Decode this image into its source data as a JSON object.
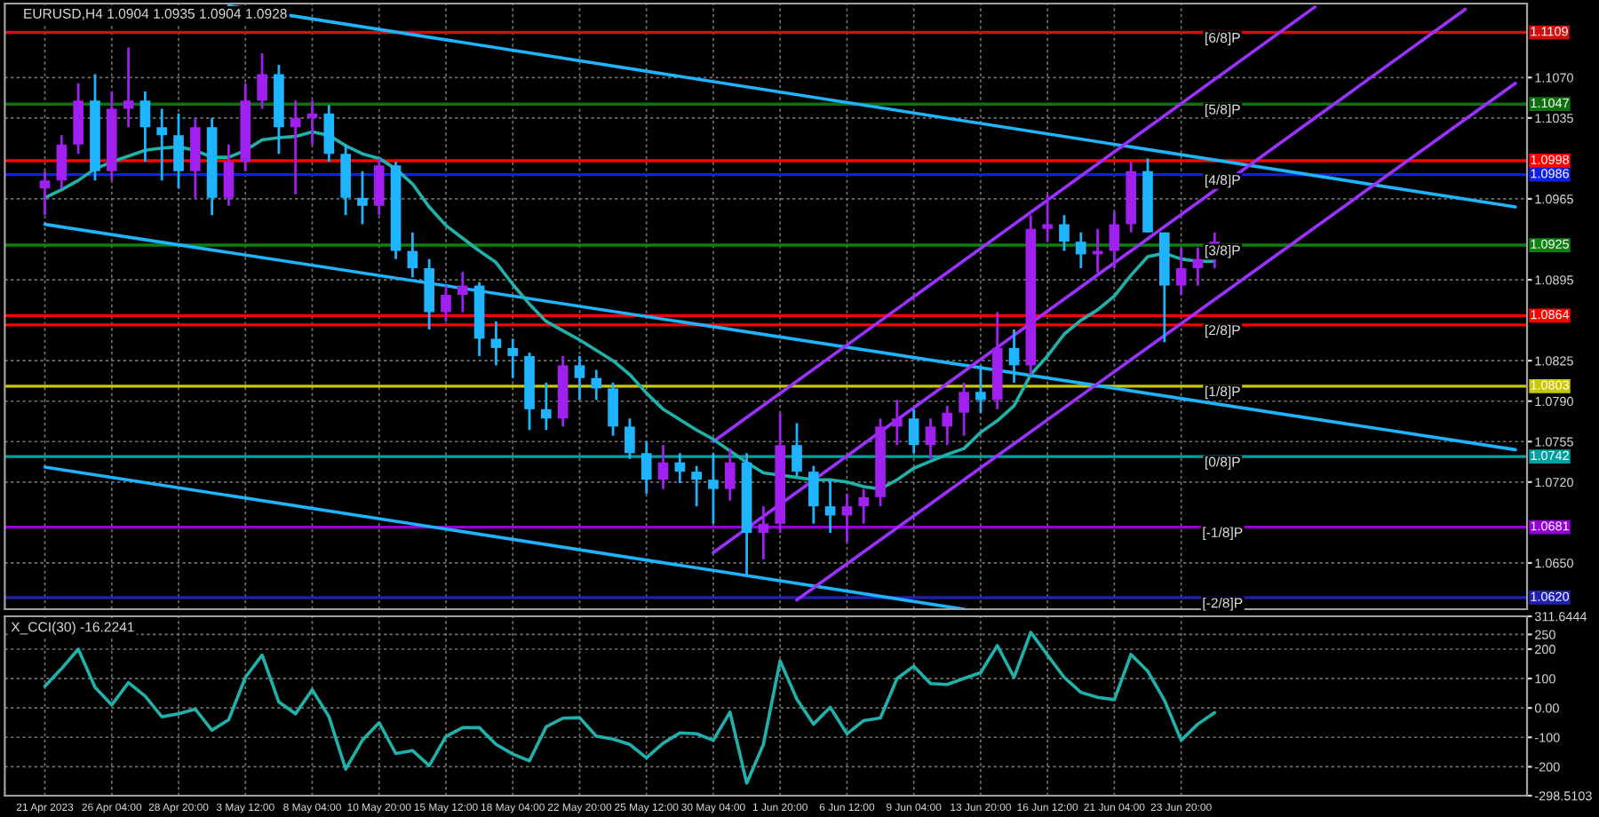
{
  "chart_data": [
    {
      "type": "candlestick",
      "title": "EURUSD,H4 1.0904 1.0935 1.0904 1.0928",
      "ylim": [
        1.061,
        1.1134
      ],
      "categories": [
        null,
        null,
        null,
        null,
        null,
        null,
        null,
        null,
        null,
        null,
        null,
        null,
        null,
        null,
        null,
        null,
        null,
        null,
        null,
        null,
        null,
        null,
        null,
        null,
        null,
        null,
        null,
        null,
        null,
        null,
        null,
        null,
        null,
        null,
        null,
        null,
        null,
        null,
        null,
        null,
        null,
        null,
        null,
        null,
        null,
        null,
        null,
        null,
        null,
        null,
        null,
        null,
        null,
        null,
        null,
        null,
        null,
        null,
        null,
        null,
        null,
        null,
        null,
        null,
        null,
        null,
        null,
        null,
        null,
        null,
        null,
        null,
        null,
        null,
        null,
        null,
        null,
        null,
        null,
        null,
        null,
        null,
        null,
        null,
        null,
        null,
        null,
        null,
        null
      ],
      "yticks": [
        {
          "value": 1.107,
          "label": "1.1070"
        },
        1.1035,
        1.0965,
        1.0895,
        1.0825,
        {
          "value": 1.079,
          "label": "1.0790"
        },
        1.0755,
        {
          "value": 1.072,
          "label": "1.0720"
        },
        {
          "value": 1.065,
          "label": "1.0650"
        }
      ],
      "tick_labels": "y",
      "grid": true,
      "ref_lines": [
        {
          "axis": "y",
          "value": 1.1109,
          "label": "1.1109",
          "color": "#d01010"
        },
        {
          "axis": "y",
          "value": 1.1047,
          "label": "1.1047",
          "color": "#107010"
        },
        {
          "axis": "y",
          "value": 1.0998,
          "label": "1.0998",
          "color": "#ff0000"
        },
        {
          "axis": "y",
          "value": 1.0986,
          "label": "1.0986",
          "color": "#1020e0"
        },
        {
          "axis": "y",
          "value": 1.0925,
          "label": "1.0925",
          "color": "#108010"
        },
        {
          "axis": "y",
          "value": 1.0864,
          "label": "1.0864",
          "color": "#ff0000"
        },
        {
          "axis": "y",
          "value": 1.0856,
          "label": null,
          "color": "#ff0000"
        },
        {
          "axis": "y",
          "value": 1.0803,
          "label": "1.0803",
          "color": "#c8c800"
        },
        {
          "axis": "y",
          "value": 1.0742,
          "label": "1.0742",
          "color": "#00a0a0"
        },
        {
          "axis": "y",
          "value": 1.0681,
          "label": "1.0681",
          "color": "#9400d3"
        },
        {
          "axis": "y",
          "value": 1.062,
          "label": "1.0620",
          "color": "#2020b0"
        }
      ],
      "annotations": [
        {
          "text": "[6/8]P",
          "y": 1.1109
        },
        {
          "text": "[5/8]P",
          "y": 1.1047
        },
        {
          "text": "[4/8]P",
          "y": 1.0986
        },
        {
          "text": "[3/8]P",
          "y": 1.0925
        },
        {
          "text": "[2/8]P",
          "y": 1.0856
        },
        {
          "text": "[1/8]P",
          "y": 1.0803
        },
        {
          "text": "[0/8]P",
          "y": 1.0742
        },
        {
          "text": "[-1/8]P",
          "y": 1.0681
        },
        {
          "text": "[-2/8]P",
          "y": 1.062
        }
      ],
      "series": [
        {
          "type": "line",
          "color": "#1eb4ff",
          "values": [
            null,
            null,
            null,
            null,
            null,
            null,
            null,
            null,
            null,
            null,
            null,
            1.1132,
            null,
            null,
            null,
            null,
            null,
            null,
            null,
            null,
            null,
            null,
            null,
            null,
            null,
            null,
            null,
            null,
            null,
            null,
            null,
            null,
            null,
            null,
            null,
            null,
            null,
            null,
            null,
            null,
            null,
            null,
            null,
            null,
            null,
            null,
            null,
            null,
            null,
            null,
            null,
            null,
            null,
            null,
            null,
            null,
            null,
            null,
            null,
            null,
            null,
            null,
            null,
            null,
            null,
            null,
            null,
            null,
            null,
            null,
            null,
            null,
            null,
            null,
            null,
            null,
            null,
            null,
            null,
            null,
            null,
            null,
            null,
            null,
            null,
            null,
            null,
            null,
            1.0958
          ]
        },
        {
          "type": "line",
          "color": "#1eb4ff",
          "values": [
            1.0943,
            null,
            null,
            null,
            null,
            null,
            null,
            null,
            null,
            null,
            null,
            null,
            null,
            null,
            null,
            null,
            null,
            null,
            null,
            null,
            null,
            null,
            null,
            null,
            null,
            null,
            null,
            null,
            null,
            null,
            null,
            null,
            null,
            null,
            null,
            null,
            null,
            null,
            null,
            null,
            null,
            null,
            null,
            null,
            null,
            null,
            null,
            null,
            null,
            null,
            null,
            null,
            null,
            null,
            null,
            null,
            null,
            null,
            null,
            null,
            null,
            null,
            null,
            null,
            null,
            null,
            null,
            null,
            null,
            null,
            null,
            null,
            null,
            null,
            null,
            null,
            null,
            null,
            null,
            null,
            null,
            null,
            null,
            null,
            null,
            null,
            null,
            null,
            1.0748
          ]
        },
        {
          "type": "line",
          "color": "#1eb4ff",
          "values": [
            1.0733,
            null,
            null,
            null,
            null,
            null,
            null,
            null,
            null,
            null,
            null,
            null,
            null,
            null,
            null,
            null,
            null,
            null,
            null,
            null,
            null,
            null,
            null,
            null,
            null,
            null,
            null,
            null,
            null,
            null,
            null,
            null,
            null,
            null,
            null,
            null,
            null,
            null,
            null,
            null,
            null,
            null,
            null,
            null,
            null,
            null,
            null,
            null,
            null,
            null,
            null,
            null,
            null,
            null,
            null,
            1.061,
            null,
            null,
            null,
            null,
            null,
            null,
            null,
            null,
            null,
            null,
            null,
            null,
            null,
            null,
            null,
            null,
            null,
            null,
            null,
            null,
            null,
            null,
            null,
            null,
            null,
            null,
            null,
            null,
            null,
            null,
            null,
            null,
            null
          ]
        },
        {
          "type": "line",
          "color": "#9b30ff",
          "values": [
            null,
            null,
            null,
            null,
            null,
            null,
            null,
            null,
            null,
            null,
            null,
            null,
            null,
            null,
            null,
            null,
            null,
            null,
            null,
            null,
            null,
            null,
            null,
            null,
            null,
            null,
            null,
            null,
            null,
            null,
            null,
            null,
            null,
            null,
            null,
            null,
            null,
            null,
            null,
            null,
            1.0755,
            null,
            null,
            null,
            null,
            null,
            null,
            null,
            null,
            null,
            null,
            null,
            null,
            null,
            null,
            null,
            null,
            null,
            null,
            null,
            null,
            null,
            null,
            null,
            null,
            null,
            null,
            null,
            null,
            null,
            null,
            null,
            null,
            null,
            null,
            null,
            1.1131,
            null,
            null,
            null,
            null,
            null,
            null,
            null,
            null,
            null,
            null,
            null,
            null
          ]
        },
        {
          "type": "line",
          "color": "#9b30ff",
          "values": [
            null,
            null,
            null,
            null,
            null,
            null,
            null,
            null,
            null,
            null,
            null,
            null,
            null,
            null,
            null,
            null,
            null,
            null,
            null,
            null,
            null,
            null,
            null,
            null,
            null,
            null,
            null,
            null,
            null,
            null,
            null,
            null,
            null,
            null,
            null,
            null,
            null,
            null,
            null,
            null,
            1.0659,
            null,
            null,
            null,
            null,
            null,
            null,
            null,
            null,
            null,
            null,
            null,
            null,
            null,
            null,
            null,
            null,
            null,
            null,
            null,
            null,
            null,
            null,
            null,
            null,
            null,
            null,
            null,
            null,
            null,
            null,
            null,
            null,
            null,
            null,
            null,
            null,
            null,
            null,
            null,
            null,
            null,
            null,
            null,
            null,
            1.1129,
            null,
            null,
            null
          ]
        },
        {
          "type": "line",
          "color": "#9b30ff",
          "values": [
            null,
            null,
            null,
            null,
            null,
            null,
            null,
            null,
            null,
            null,
            null,
            null,
            null,
            null,
            null,
            null,
            null,
            null,
            null,
            null,
            null,
            null,
            null,
            null,
            null,
            null,
            null,
            null,
            null,
            null,
            null,
            null,
            null,
            null,
            null,
            null,
            null,
            null,
            null,
            null,
            null,
            null,
            null,
            null,
            null,
            1.0618,
            null,
            null,
            null,
            null,
            null,
            null,
            null,
            null,
            null,
            null,
            null,
            null,
            null,
            null,
            null,
            null,
            null,
            null,
            null,
            null,
            null,
            null,
            null,
            null,
            null,
            null,
            null,
            null,
            null,
            null,
            null,
            null,
            null,
            null,
            null,
            null,
            null,
            null,
            null,
            null,
            null,
            null,
            1.1065
          ]
        },
        {
          "type": "line",
          "color": "#20b2aa",
          "values": [
            1.0966,
            1.0973,
            1.0981,
            1.0991,
            1.0997,
            1.1002,
            1.1007,
            1.1009,
            1.101,
            1.1007,
            1.1001,
            1.1001,
            1.1007,
            1.1016,
            1.1018,
            1.1019,
            1.1023,
            1.102,
            1.1011,
            1.1004,
            1.1,
            1.0991,
            1.0978,
            1.0958,
            1.0942,
            1.0931,
            1.092,
            1.091,
            1.0891,
            1.0874,
            1.0859,
            1.0851,
            1.0843,
            1.0834,
            1.0825,
            1.0813,
            1.0797,
            1.0783,
            1.0774,
            1.0765,
            1.0757,
            1.0747,
            1.0737,
            1.0728,
            1.0726,
            1.0724,
            1.0722,
            1.0722,
            1.072,
            1.0716,
            1.0714,
            1.0722,
            1.0732,
            1.0738,
            1.0744,
            1.0749,
            1.0763,
            1.0773,
            1.0786,
            1.0813,
            1.0829,
            1.0848,
            1.086,
            1.0869,
            1.0881,
            1.0899,
            1.0915,
            1.0918,
            1.0913,
            1.0911,
            1.0911,
            null,
            null,
            null,
            null,
            null,
            null,
            null,
            null,
            null,
            null,
            null,
            null,
            null,
            null,
            null,
            null,
            null,
            null
          ]
        },
        {
          "type": "candlestick",
          "ohlc": [
            [
              1.0974,
              1.0989,
              1.0951,
              1.0981
            ],
            [
              1.0981,
              1.102,
              1.0974,
              1.1012
            ],
            [
              1.1012,
              1.1065,
              1.1004,
              1.105
            ],
            [
              1.105,
              1.1073,
              1.0981,
              1.0989
            ],
            [
              1.0989,
              1.1058,
              1.0981,
              1.1043
            ],
            [
              1.1043,
              1.1096,
              1.1027,
              1.105
            ],
            [
              1.105,
              1.1058,
              1.0997,
              1.1027
            ],
            [
              1.1027,
              1.1043,
              1.0981,
              1.102
            ],
            [
              1.102,
              1.1039,
              1.0974,
              1.0989
            ],
            [
              1.0989,
              1.1035,
              1.0966,
              1.1027
            ],
            [
              1.1027,
              1.1035,
              1.0951,
              1.0966
            ],
            [
              1.0966,
              1.1012,
              1.0959,
              1.0997
            ],
            [
              1.0997,
              1.1065,
              1.0989,
              1.105
            ],
            [
              1.105,
              1.1091,
              1.1043,
              1.1073
            ],
            [
              1.1073,
              1.1081,
              1.1004,
              1.1027
            ],
            [
              1.1027,
              1.105,
              1.0969,
              1.1035
            ],
            [
              1.1035,
              1.105,
              1.1012,
              1.1039
            ],
            [
              1.1039,
              1.1046,
              1.0997,
              1.1004
            ],
            [
              1.1004,
              1.1012,
              1.0951,
              1.0966
            ],
            [
              1.0966,
              1.0989,
              1.0943,
              1.0959
            ],
            [
              1.0959,
              1.1,
              1.0951,
              1.0994
            ],
            [
              1.0994,
              1.0997,
              1.0913,
              1.092
            ],
            [
              1.092,
              1.0936,
              1.0897,
              1.0905
            ],
            [
              1.0905,
              1.0913,
              1.0852,
              1.0867
            ],
            [
              1.0867,
              1.089,
              1.0859,
              1.0882
            ],
            [
              1.0882,
              1.0902,
              1.0867,
              1.089
            ],
            [
              1.089,
              1.0893,
              1.0829,
              1.0844
            ],
            [
              1.0844,
              1.0859,
              1.0821,
              1.0836
            ],
            [
              1.0836,
              1.0844,
              1.081,
              1.0829
            ],
            [
              1.0829,
              1.0832,
              1.0765,
              1.0783
            ],
            [
              1.0783,
              1.0806,
              1.0765,
              1.0775
            ],
            [
              1.0775,
              1.0829,
              1.0768,
              1.0821
            ],
            [
              1.0821,
              1.0829,
              1.0791,
              1.081
            ],
            [
              1.081,
              1.0817,
              1.0791,
              1.0801
            ],
            [
              1.0801,
              1.0806,
              1.076,
              1.0768
            ],
            [
              1.0768,
              1.0775,
              1.074,
              1.0745
            ],
            [
              1.0745,
              1.0755,
              1.071,
              1.0722
            ],
            [
              1.0722,
              1.0752,
              1.0714,
              1.0737
            ],
            [
              1.0737,
              1.0745,
              1.0719,
              1.0729
            ],
            [
              1.0729,
              1.0734,
              1.0699,
              1.0722
            ],
            [
              1.0722,
              1.0745,
              1.0684,
              1.0714
            ],
            [
              1.0714,
              1.0749,
              1.0704,
              1.0737
            ],
            [
              1.0737,
              1.0745,
              1.0638,
              1.0676
            ],
            [
              1.0676,
              1.0699,
              1.0653,
              1.0684
            ],
            [
              1.0684,
              1.078,
              1.0676,
              1.0752
            ],
            [
              1.0752,
              1.0771,
              1.0725,
              1.0729
            ],
            [
              1.0729,
              1.0734,
              1.0684,
              1.0699
            ],
            [
              1.0699,
              1.0722,
              1.0676,
              1.0691
            ],
            [
              1.0691,
              1.071,
              1.0668,
              1.0699
            ],
            [
              1.0699,
              1.0714,
              1.0684,
              1.0707
            ],
            [
              1.0707,
              1.0775,
              1.0699,
              1.0768
            ],
            [
              1.0768,
              1.0791,
              1.0752,
              1.0775
            ],
            [
              1.0775,
              1.0783,
              1.0745,
              1.0752
            ],
            [
              1.0752,
              1.0775,
              1.074,
              1.0768
            ],
            [
              1.0768,
              1.0786,
              1.0752,
              1.078
            ],
            [
              1.078,
              1.0806,
              1.076,
              1.0798
            ],
            [
              1.0798,
              1.0821,
              1.078,
              1.0791
            ],
            [
              1.0791,
              1.0867,
              1.0783,
              1.0836
            ],
            [
              1.0836,
              1.0852,
              1.0806,
              1.0821
            ],
            [
              1.0821,
              1.0951,
              1.0813,
              1.0939
            ],
            [
              1.0939,
              1.0969,
              1.0928,
              1.0943
            ],
            [
              1.0943,
              1.0951,
              1.092,
              1.0928
            ],
            [
              1.0928,
              1.0936,
              1.0905,
              1.0917
            ],
            [
              1.0917,
              1.0939,
              1.0901,
              1.092
            ],
            [
              1.092,
              1.0954,
              1.0905,
              1.0943
            ],
            [
              1.0943,
              1.0997,
              1.0936,
              1.0989
            ],
            [
              1.0989,
              1.1,
              1.0936,
              1.0936
            ],
            [
              1.0936,
              1.0936,
              1.0841,
              1.089
            ],
            [
              1.089,
              1.0923,
              1.0882,
              1.0905
            ],
            [
              1.0905,
              1.0923,
              1.089,
              1.0913
            ],
            [
              1.0913,
              1.0936,
              1.0905,
              1.0928
            ],
            null,
            null,
            null,
            null,
            null,
            null,
            null,
            null,
            null,
            null,
            null,
            null,
            null,
            null,
            null,
            null,
            null,
            null
          ],
          "colors": [
            "#a020f0",
            "#a020f0",
            "#a020f0",
            "#1eb4ff",
            "#a020f0",
            "#a020f0",
            "#1eb4ff",
            "#1eb4ff",
            "#1eb4ff",
            "#a020f0",
            "#1eb4ff",
            "#a020f0",
            "#a020f0",
            "#a020f0",
            "#1eb4ff",
            "#a020f0",
            "#a020f0",
            "#1eb4ff",
            "#1eb4ff",
            "#1eb4ff",
            "#a020f0",
            "#1eb4ff",
            "#1eb4ff",
            "#1eb4ff",
            "#a020f0",
            "#a020f0",
            "#1eb4ff",
            "#1eb4ff",
            "#1eb4ff",
            "#1eb4ff",
            "#1eb4ff",
            "#a020f0",
            "#1eb4ff",
            "#1eb4ff",
            "#1eb4ff",
            "#1eb4ff",
            "#1eb4ff",
            "#a020f0",
            "#1eb4ff",
            "#1eb4ff",
            "#1eb4ff",
            "#a020f0",
            "#1eb4ff",
            "#a020f0",
            "#a020f0",
            "#1eb4ff",
            "#1eb4ff",
            "#1eb4ff",
            "#a020f0",
            "#a020f0",
            "#a020f0",
            "#a020f0",
            "#1eb4ff",
            "#a020f0",
            "#a020f0",
            "#a020f0",
            "#1eb4ff",
            "#a020f0",
            "#1eb4ff",
            "#a020f0",
            "#a020f0",
            "#1eb4ff",
            "#1eb4ff",
            "#a020f0",
            "#a020f0",
            "#a020f0",
            "#1eb4ff",
            "#1eb4ff",
            "#a020f0",
            "#a020f0",
            "#a020f0",
            null,
            null,
            null,
            null,
            null,
            null,
            null,
            null,
            null,
            null,
            null,
            null,
            null,
            null,
            null,
            null,
            null,
            null
          ]
        }
      ]
    },
    {
      "type": "line",
      "annotations": [
        "X_CCI(30) -16.2241"
      ],
      "ylim": [
        -298.5103,
        311.6444
      ],
      "categories": [
        "21 Apr 2023",
        null,
        null,
        null,
        "26 Apr 04:00",
        null,
        null,
        null,
        "28 Apr 20:00",
        null,
        null,
        null,
        "3 May 12:00",
        null,
        null,
        null,
        "8 May 04:00",
        null,
        null,
        null,
        "10 May 20:00",
        null,
        null,
        null,
        "15 May 12:00",
        null,
        null,
        null,
        "18 May 04:00",
        null,
        null,
        null,
        "22 May 20:00",
        null,
        null,
        null,
        "25 May 12:00",
        null,
        null,
        null,
        "30 May 04:00",
        null,
        null,
        null,
        "1 Jun 20:00",
        null,
        null,
        null,
        "6 Jun 12:00",
        null,
        null,
        null,
        "9 Jun 04:00",
        null,
        null,
        null,
        "13 Jun 20:00",
        null,
        null,
        null,
        "16 Jun 12:00",
        null,
        null,
        null,
        "21 Jun 04:00",
        null,
        null,
        null,
        "23 Jun 20:00",
        null,
        null,
        null,
        null,
        null,
        null,
        null,
        null,
        null,
        null,
        null,
        null,
        null,
        null,
        null,
        null,
        null,
        null,
        null,
        null
      ],
      "yticks": [
        {
          "value": 311.6444,
          "label": "311.6444"
        },
        250,
        200,
        100,
        {
          "value": 0,
          "label": "0.00"
        },
        -100,
        -200,
        {
          "value": -298.5103,
          "label": "-298.5103"
        }
      ],
      "grid": true,
      "series": [
        {
          "color": "#20b2aa",
          "values": [
            74,
            134,
            200,
            70,
            10,
            86,
            40,
            -30,
            -20,
            -4,
            -76,
            -40,
            104,
            180,
            20,
            -20,
            62,
            -30,
            -208,
            -110,
            -50,
            -155,
            -145,
            -196,
            -97,
            -67,
            -67,
            -124,
            -157,
            -180,
            -64,
            -35,
            -33,
            -96,
            -106,
            -124,
            -170,
            -120,
            -85,
            -88,
            -110,
            -14,
            -256,
            -124,
            160,
            30,
            -55,
            2,
            -88,
            -43,
            -34,
            100,
            142,
            83,
            80,
            100,
            120,
            212,
            104,
            257,
            180,
            104,
            53,
            36,
            28,
            182,
            125,
            26,
            -110,
            -55,
            -16,
            null,
            null,
            null,
            null,
            null,
            null,
            null,
            null,
            null,
            null,
            null,
            null,
            null,
            null,
            null,
            null,
            null,
            null
          ]
        }
      ]
    }
  ]
}
